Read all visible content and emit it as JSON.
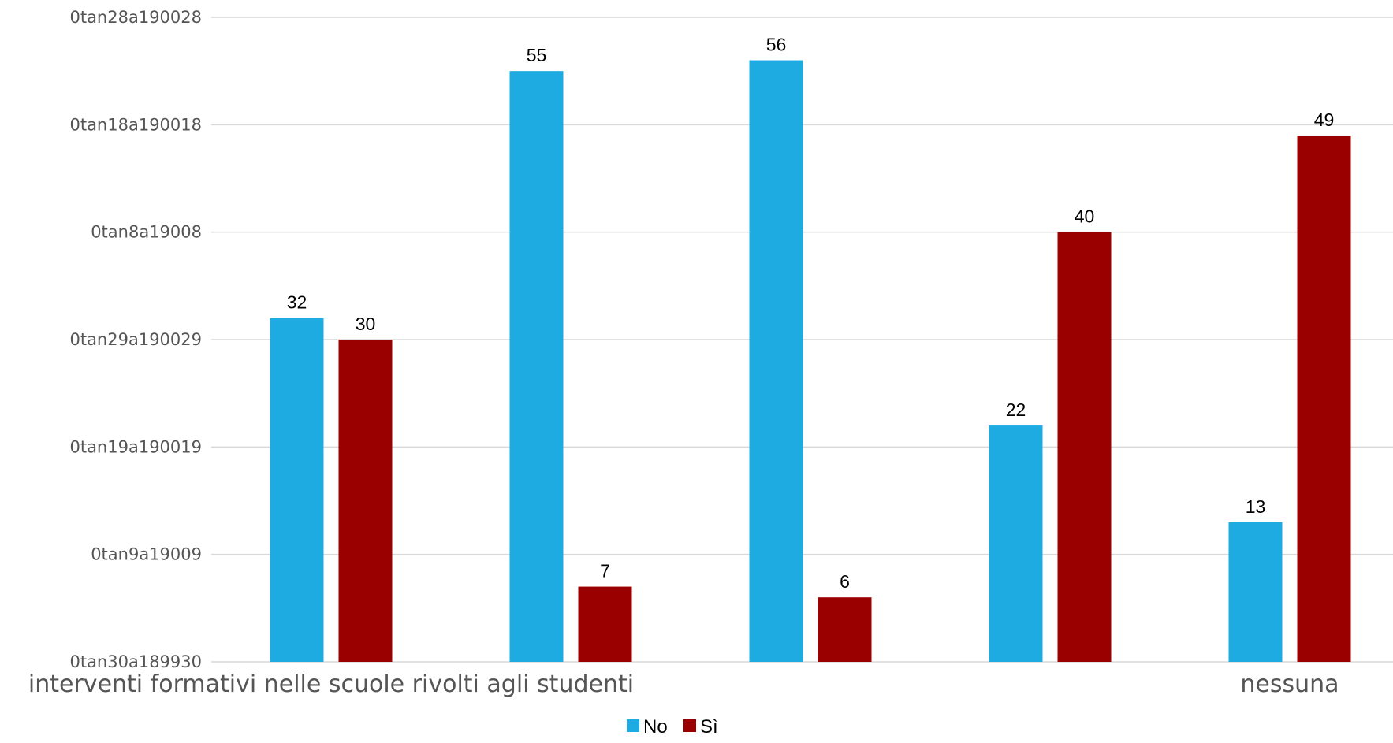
{
  "chart_data": {
    "type": "bar",
    "categories": [
      "interventi formativi nelle scuole rivolti agli studenti",
      "",
      "",
      "",
      "nessuna"
    ],
    "series": [
      {
        "name": "No",
        "color": "#1eabe2",
        "values": [
          32,
          55,
          56,
          22,
          13
        ]
      },
      {
        "name": "Sì",
        "color": "#9b0000",
        "values": [
          30,
          7,
          6,
          40,
          49
        ]
      }
    ],
    "y_tick_labels": [
      "0tan30a189930",
      "0tan9a19009",
      "0tan19a190019",
      "0tan29a190029",
      "0tan8a19008",
      "0tan18a190018",
      "0tan28a190028"
    ],
    "ylim": [
      0,
      60
    ],
    "grid": true,
    "legend_position": "bottom"
  }
}
